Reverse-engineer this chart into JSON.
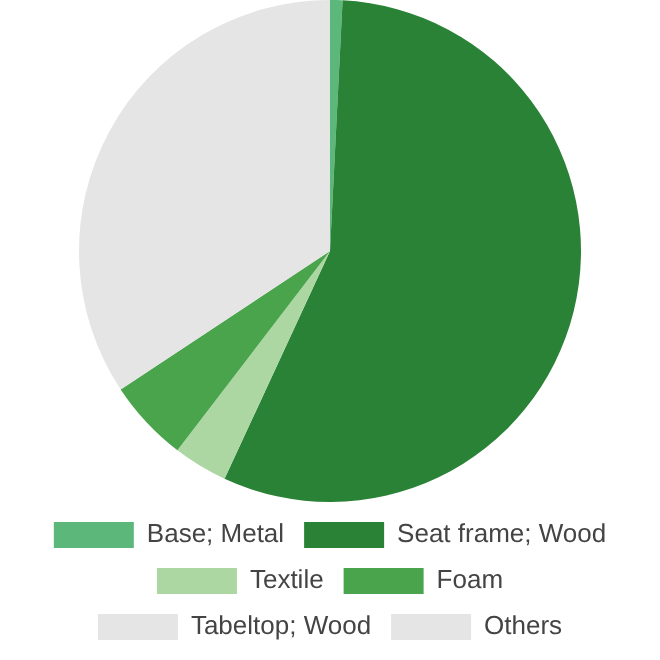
{
  "chart_data": {
    "type": "pie",
    "categories": [
      "Base; Metal",
      "Seat frame; Wood",
      "Textile",
      "Foam",
      "Tabeltop; Wood",
      "Others"
    ],
    "values": [
      0.8,
      56.1,
      3.5,
      5.3,
      34.3,
      0
    ],
    "colors": [
      "#5cb87a",
      "#2a8237",
      "#acd7a2",
      "#4aa44c",
      "#e5e5e5",
      "#e5e5e5"
    ],
    "legend": "bottom"
  }
}
